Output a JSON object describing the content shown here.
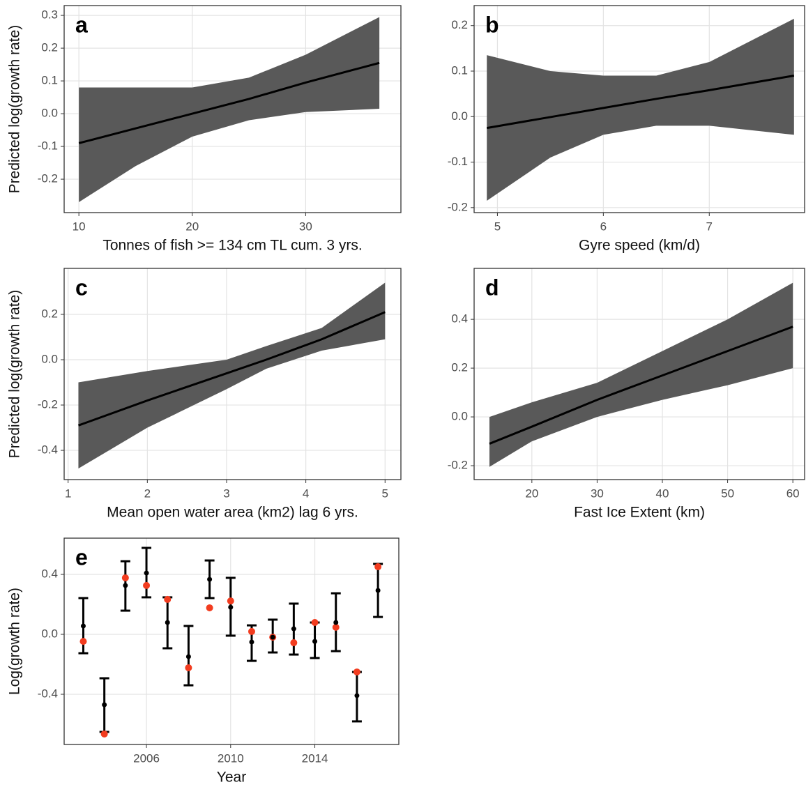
{
  "chart_data": [
    {
      "type": "line",
      "label": "a",
      "xlabel": "Tonnes of fish >= 134 cm TL cum. 3 yrs.",
      "ylabel": "Predicted log(growth rate)",
      "x": [
        10,
        15,
        20,
        25,
        30,
        36.5
      ],
      "values": [
        -0.09,
        -0.045,
        0.0,
        0.045,
        0.095,
        0.155
      ],
      "lower": [
        -0.27,
        -0.16,
        -0.07,
        -0.02,
        0.005,
        0.015
      ],
      "upper": [
        0.08,
        0.08,
        0.08,
        0.11,
        0.18,
        0.295
      ],
      "color": "#000000",
      "band_color": "#595959",
      "xlim": [
        8.7,
        38.4
      ],
      "xticks": [
        10,
        20,
        30
      ],
      "ylim": [
        -0.302,
        0.33
      ],
      "yticks": [
        0.3,
        0.2,
        0.1,
        {
          "value": 0,
          "label": "0.0"
        },
        -0.1,
        -0.2
      ],
      "grid": true
    },
    {
      "type": "line",
      "label": "b",
      "xlabel": "Gyre speed (km/d)",
      "x": [
        4.9,
        5.5,
        6,
        6.5,
        7,
        7.8
      ],
      "values": [
        -0.025,
        -0.001,
        0.019,
        0.039,
        0.058,
        0.09
      ],
      "lower": [
        -0.185,
        -0.09,
        -0.04,
        -0.02,
        -0.02,
        -0.04
      ],
      "upper": [
        0.135,
        0.1,
        0.09,
        0.09,
        0.12,
        0.215
      ],
      "color": "#000000",
      "band_color": "#595959",
      "xlim": [
        4.78,
        7.9
      ],
      "xticks": [
        5,
        6,
        7
      ],
      "ylim": [
        -0.211,
        0.244
      ],
      "yticks": [
        0.2,
        0.1,
        {
          "value": 0,
          "label": "0.0"
        },
        -0.1,
        -0.2
      ],
      "grid": true
    },
    {
      "type": "line",
      "label": "c",
      "xlabel": "Mean open water area (km2) lag 6 yrs.",
      "ylabel": "Predicted log(growth rate)",
      "x": [
        1.13,
        2,
        3,
        3.5,
        4.2,
        5
      ],
      "values": [
        -0.29,
        -0.18,
        -0.06,
        0.0,
        0.09,
        0.21
      ],
      "lower": [
        -0.48,
        -0.3,
        -0.13,
        -0.04,
        0.04,
        0.09
      ],
      "upper": [
        -0.1,
        -0.05,
        0.0,
        0.06,
        0.14,
        0.34
      ],
      "color": "#000000",
      "band_color": "#595959",
      "xlim": [
        0.95,
        5.2
      ],
      "xticks": [
        1,
        2,
        3,
        4,
        5
      ],
      "ylim": [
        -0.529,
        0.403
      ],
      "yticks": [
        0.2,
        {
          "value": 0,
          "label": "0.0"
        },
        -0.2,
        -0.4
      ],
      "grid": true
    },
    {
      "type": "line",
      "label": "d",
      "xlabel": "Fast Ice Extent (km)",
      "x": [
        13.5,
        20,
        30,
        40,
        50,
        60
      ],
      "values": [
        -0.11,
        -0.04,
        0.07,
        0.17,
        0.27,
        0.37
      ],
      "lower": [
        -0.205,
        -0.1,
        0.0,
        0.07,
        0.13,
        0.2
      ],
      "upper": [
        0.0,
        0.06,
        0.14,
        0.27,
        0.4,
        0.55
      ],
      "color": "#000000",
      "band_color": "#595959",
      "xlim": [
        11.15,
        61.8
      ],
      "xticks": [
        20,
        30,
        40,
        50,
        60
      ],
      "ylim": [
        -0.257,
        0.609
      ],
      "yticks": [
        0.4,
        0.2,
        {
          "value": 0,
          "label": "0.0"
        },
        -0.2
      ],
      "grid": true
    },
    {
      "type": "errorbar",
      "label": "e",
      "xlabel": "Year",
      "ylabel": "Log(growth rate)",
      "x": [
        2003,
        2004,
        2005,
        2006,
        2007,
        2008,
        2009,
        2010,
        2011,
        2012,
        2013,
        2014,
        2015,
        2016,
        2017
      ],
      "values": [
        0.056,
        -0.47,
        0.326,
        0.409,
        0.079,
        -0.149,
        0.367,
        0.181,
        -0.051,
        -0.019,
        0.037,
        -0.047,
        0.079,
        -0.409,
        0.293
      ],
      "lower": [
        -0.126,
        -0.651,
        0.158,
        0.247,
        -0.093,
        -0.34,
        0.242,
        -0.009,
        -0.177,
        -0.121,
        -0.135,
        -0.158,
        -0.112,
        -0.581,
        0.116
      ],
      "upper": [
        0.242,
        -0.293,
        0.488,
        0.577,
        0.247,
        0.056,
        0.493,
        0.377,
        0.06,
        0.098,
        0.205,
        0.079,
        0.274,
        -0.251,
        0.47
      ],
      "observed": [
        -0.047,
        -0.665,
        0.377,
        0.326,
        0.233,
        -0.223,
        0.177,
        0.223,
        0.019,
        -0.019,
        -0.056,
        0.079,
        0.047,
        -0.251,
        0.451
      ],
      "color": "#000000",
      "observed_color": "#f23c1f",
      "xlim": [
        2002.09,
        2017.99
      ],
      "xticks": [
        2006,
        2010,
        2014
      ],
      "ylim": [
        -0.735,
        0.642
      ],
      "yticks": [
        0.4,
        {
          "value": 0,
          "label": "0.0"
        },
        -0.4
      ],
      "grid": true
    }
  ]
}
